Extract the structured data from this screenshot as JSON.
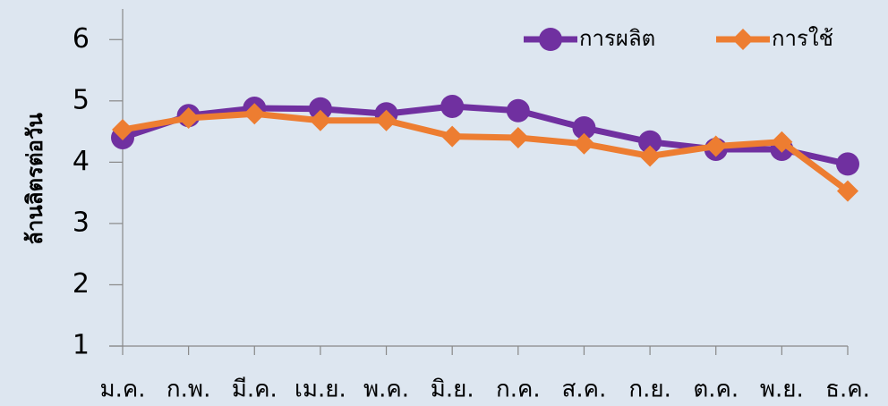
{
  "chart_data": {
    "type": "line",
    "y_label": "ล้านลิตรต่อวัน",
    "categories": [
      "ม.ค.",
      "ก.พ.",
      "มี.ค.",
      "เม.ย.",
      "พ.ค.",
      "มิ.ย.",
      "ก.ค.",
      "ส.ค.",
      "ก.ย.",
      "ต.ค.",
      "พ.ย.",
      "ธ.ค."
    ],
    "series": [
      {
        "name": "การผลิต",
        "color": "#7030a0",
        "marker": "circle",
        "values": [
          4.4,
          4.76,
          4.88,
          4.87,
          4.79,
          4.91,
          4.84,
          4.56,
          4.33,
          4.21,
          4.21,
          3.97
        ]
      },
      {
        "name": "การใช้",
        "color": "#ed7d31",
        "marker": "diamond",
        "values": [
          4.53,
          4.72,
          4.79,
          4.68,
          4.68,
          4.42,
          4.4,
          4.3,
          4.1,
          4.26,
          4.33,
          3.53
        ]
      }
    ],
    "ylim": [
      1,
      6.5
    ],
    "yticks": [
      1,
      2,
      3,
      4,
      5,
      6
    ],
    "grid": false,
    "legend": "top-right"
  }
}
